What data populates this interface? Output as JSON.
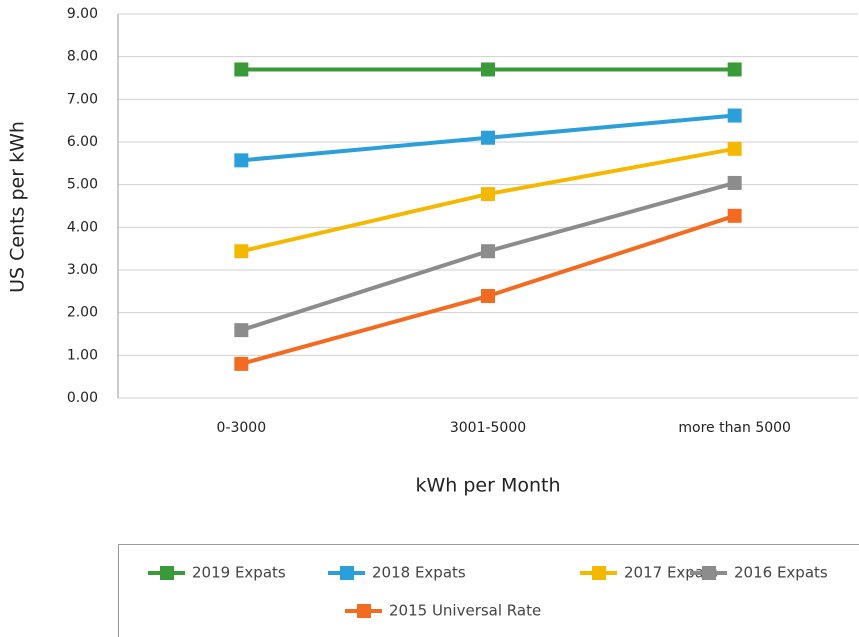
{
  "chart_data": {
    "type": "line",
    "x_label": "kWh per Month",
    "y_label": "US Cents per kWh",
    "categories": [
      "0-3000",
      "3001-5000",
      "more than 5000"
    ],
    "series": [
      {
        "name": "2019 Expats",
        "color": "#3a9a3a",
        "values": [
          7.7,
          7.7,
          7.7
        ]
      },
      {
        "name": "2018 Expats",
        "color": "#2b9fd9",
        "values": [
          5.57,
          6.1,
          6.62
        ]
      },
      {
        "name": "2017 Expats",
        "color": "#f5b800",
        "values": [
          3.44,
          4.78,
          5.84
        ]
      },
      {
        "name": "2016 Expats",
        "color": "#8c8c8c",
        "values": [
          1.59,
          3.44,
          5.04
        ]
      },
      {
        "name": "2015 Universal Rate",
        "color": "#f26b21",
        "values": [
          0.8,
          2.39,
          4.27
        ]
      }
    ],
    "ylim": [
      0,
      9
    ],
    "yticks": [
      {
        "value": 0,
        "label": "0.00"
      },
      {
        "value": 1,
        "label": "1.00"
      },
      {
        "value": 2,
        "label": "2.00"
      },
      {
        "value": 3,
        "label": "3.00"
      },
      {
        "value": 4,
        "label": "4.00"
      },
      {
        "value": 5,
        "label": "5.00"
      },
      {
        "value": 6,
        "label": "6.00"
      },
      {
        "value": 7,
        "label": "7.00"
      },
      {
        "value": 8,
        "label": "8.00"
      },
      {
        "value": 9,
        "label": "9.00"
      }
    ],
    "grid": true,
    "legend": "bottom"
  }
}
